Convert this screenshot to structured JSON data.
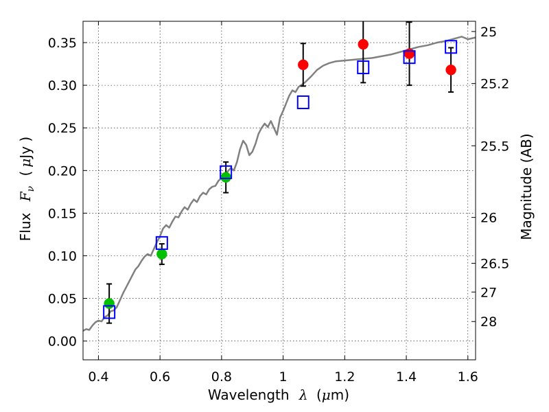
{
  "chart_data": {
    "type": "scatter",
    "xlabel": {
      "pre": "Wavelength",
      "sym": "λ",
      "unit_open": "(",
      "unit_mu": "μ",
      "unit_rest": "m)"
    },
    "ylabel": {
      "pre": "Flux",
      "sym": "F",
      "sub": "ν",
      "unit_open": "(",
      "unit_mu": "μ",
      "unit_rest": "Jy )"
    },
    "y2label": "Magnitude (AB)",
    "xlim": [
      0.35,
      1.625
    ],
    "ylim": [
      -0.022,
      0.375
    ],
    "grid": true,
    "x_ticks": [
      0.4,
      0.6,
      0.8,
      1.0,
      1.2,
      1.4,
      1.6
    ],
    "x_tick_labels": [
      "0.4",
      "0.6",
      "0.8",
      "1",
      "1.2",
      "1.4",
      "1.6"
    ],
    "y_ticks": [
      0.0,
      0.05,
      0.1,
      0.15,
      0.2,
      0.25,
      0.3,
      0.35
    ],
    "y_tick_labels": [
      "0.00",
      "0.05",
      "0.10",
      "0.15",
      "0.20",
      "0.25",
      "0.30",
      "0.35"
    ],
    "magnitude_ticks": [
      {
        "label": "25",
        "flux": 0.363
      },
      {
        "label": "25.2",
        "flux": 0.302
      },
      {
        "label": "25.5",
        "flux": 0.229
      },
      {
        "label": "26",
        "flux": 0.145
      },
      {
        "label": "26.5",
        "flux": 0.0912
      },
      {
        "label": "27",
        "flux": 0.0575
      },
      {
        "label": "28",
        "flux": 0.0229
      }
    ],
    "model_spectrum": {
      "color": "#808080",
      "points": [
        [
          0.35,
          0.012
        ],
        [
          0.36,
          0.014
        ],
        [
          0.37,
          0.013
        ],
        [
          0.38,
          0.018
        ],
        [
          0.39,
          0.022
        ],
        [
          0.4,
          0.024
        ],
        [
          0.41,
          0.023
        ],
        [
          0.42,
          0.028
        ],
        [
          0.43,
          0.03
        ],
        [
          0.44,
          0.035
        ],
        [
          0.45,
          0.036
        ],
        [
          0.46,
          0.04
        ],
        [
          0.47,
          0.048
        ],
        [
          0.48,
          0.056
        ],
        [
          0.49,
          0.063
        ],
        [
          0.5,
          0.07
        ],
        [
          0.51,
          0.077
        ],
        [
          0.52,
          0.084
        ],
        [
          0.53,
          0.088
        ],
        [
          0.54,
          0.094
        ],
        [
          0.55,
          0.099
        ],
        [
          0.56,
          0.102
        ],
        [
          0.57,
          0.1
        ],
        [
          0.58,
          0.108
        ],
        [
          0.59,
          0.116
        ],
        [
          0.6,
          0.123
        ],
        [
          0.61,
          0.132
        ],
        [
          0.62,
          0.136
        ],
        [
          0.63,
          0.133
        ],
        [
          0.64,
          0.14
        ],
        [
          0.65,
          0.146
        ],
        [
          0.66,
          0.145
        ],
        [
          0.67,
          0.152
        ],
        [
          0.68,
          0.157
        ],
        [
          0.69,
          0.154
        ],
        [
          0.7,
          0.161
        ],
        [
          0.71,
          0.166
        ],
        [
          0.72,
          0.163
        ],
        [
          0.73,
          0.17
        ],
        [
          0.74,
          0.174
        ],
        [
          0.75,
          0.172
        ],
        [
          0.76,
          0.178
        ],
        [
          0.77,
          0.181
        ],
        [
          0.78,
          0.182
        ],
        [
          0.79,
          0.188
        ],
        [
          0.8,
          0.191
        ],
        [
          0.81,
          0.194
        ],
        [
          0.82,
          0.199
        ],
        [
          0.83,
          0.203
        ],
        [
          0.84,
          0.2
        ],
        [
          0.85,
          0.21
        ],
        [
          0.86,
          0.225
        ],
        [
          0.87,
          0.235
        ],
        [
          0.88,
          0.23
        ],
        [
          0.89,
          0.218
        ],
        [
          0.9,
          0.222
        ],
        [
          0.91,
          0.231
        ],
        [
          0.92,
          0.243
        ],
        [
          0.93,
          0.25
        ],
        [
          0.94,
          0.255
        ],
        [
          0.95,
          0.251
        ],
        [
          0.96,
          0.258
        ],
        [
          0.97,
          0.25
        ],
        [
          0.98,
          0.242
        ],
        [
          0.99,
          0.262
        ],
        [
          1.0,
          0.27
        ],
        [
          1.01,
          0.279
        ],
        [
          1.02,
          0.288
        ],
        [
          1.03,
          0.294
        ],
        [
          1.04,
          0.292
        ],
        [
          1.05,
          0.298
        ],
        [
          1.07,
          0.303
        ],
        [
          1.09,
          0.31
        ],
        [
          1.11,
          0.318
        ],
        [
          1.13,
          0.323
        ],
        [
          1.15,
          0.326
        ],
        [
          1.17,
          0.328
        ],
        [
          1.2,
          0.329
        ],
        [
          1.23,
          0.33
        ],
        [
          1.26,
          0.331
        ],
        [
          1.29,
          0.332
        ],
        [
          1.32,
          0.334
        ],
        [
          1.35,
          0.336
        ],
        [
          1.38,
          0.339
        ],
        [
          1.41,
          0.342
        ],
        [
          1.44,
          0.345
        ],
        [
          1.47,
          0.347
        ],
        [
          1.5,
          0.35
        ],
        [
          1.53,
          0.352
        ],
        [
          1.56,
          0.355
        ],
        [
          1.58,
          0.357
        ],
        [
          1.6,
          0.354
        ],
        [
          1.625,
          0.356
        ]
      ]
    },
    "series": [
      {
        "marker": "circle",
        "color": "#00c000",
        "points": [
          {
            "x": 0.435,
            "y": 0.044,
            "err": 0.023
          },
          {
            "x": 0.606,
            "y": 0.102,
            "err": 0.012
          },
          {
            "x": 0.814,
            "y": 0.192,
            "err": 0.018
          }
        ]
      },
      {
        "marker": "circle",
        "color": "#ff0000",
        "points": [
          {
            "x": 1.065,
            "y": 0.324,
            "err": 0.025
          },
          {
            "x": 1.26,
            "y": 0.348,
            "err": 0.045
          },
          {
            "x": 1.41,
            "y": 0.337,
            "err": 0.037
          },
          {
            "x": 1.545,
            "y": 0.318,
            "err": 0.026
          }
        ]
      },
      {
        "marker": "square-open",
        "color": "#0000ff",
        "points": [
          {
            "x": 0.435,
            "y": 0.034
          },
          {
            "x": 0.606,
            "y": 0.115
          },
          {
            "x": 0.814,
            "y": 0.198
          },
          {
            "x": 1.065,
            "y": 0.28
          },
          {
            "x": 1.26,
            "y": 0.321
          },
          {
            "x": 1.41,
            "y": 0.333
          },
          {
            "x": 1.545,
            "y": 0.345
          }
        ]
      }
    ]
  }
}
